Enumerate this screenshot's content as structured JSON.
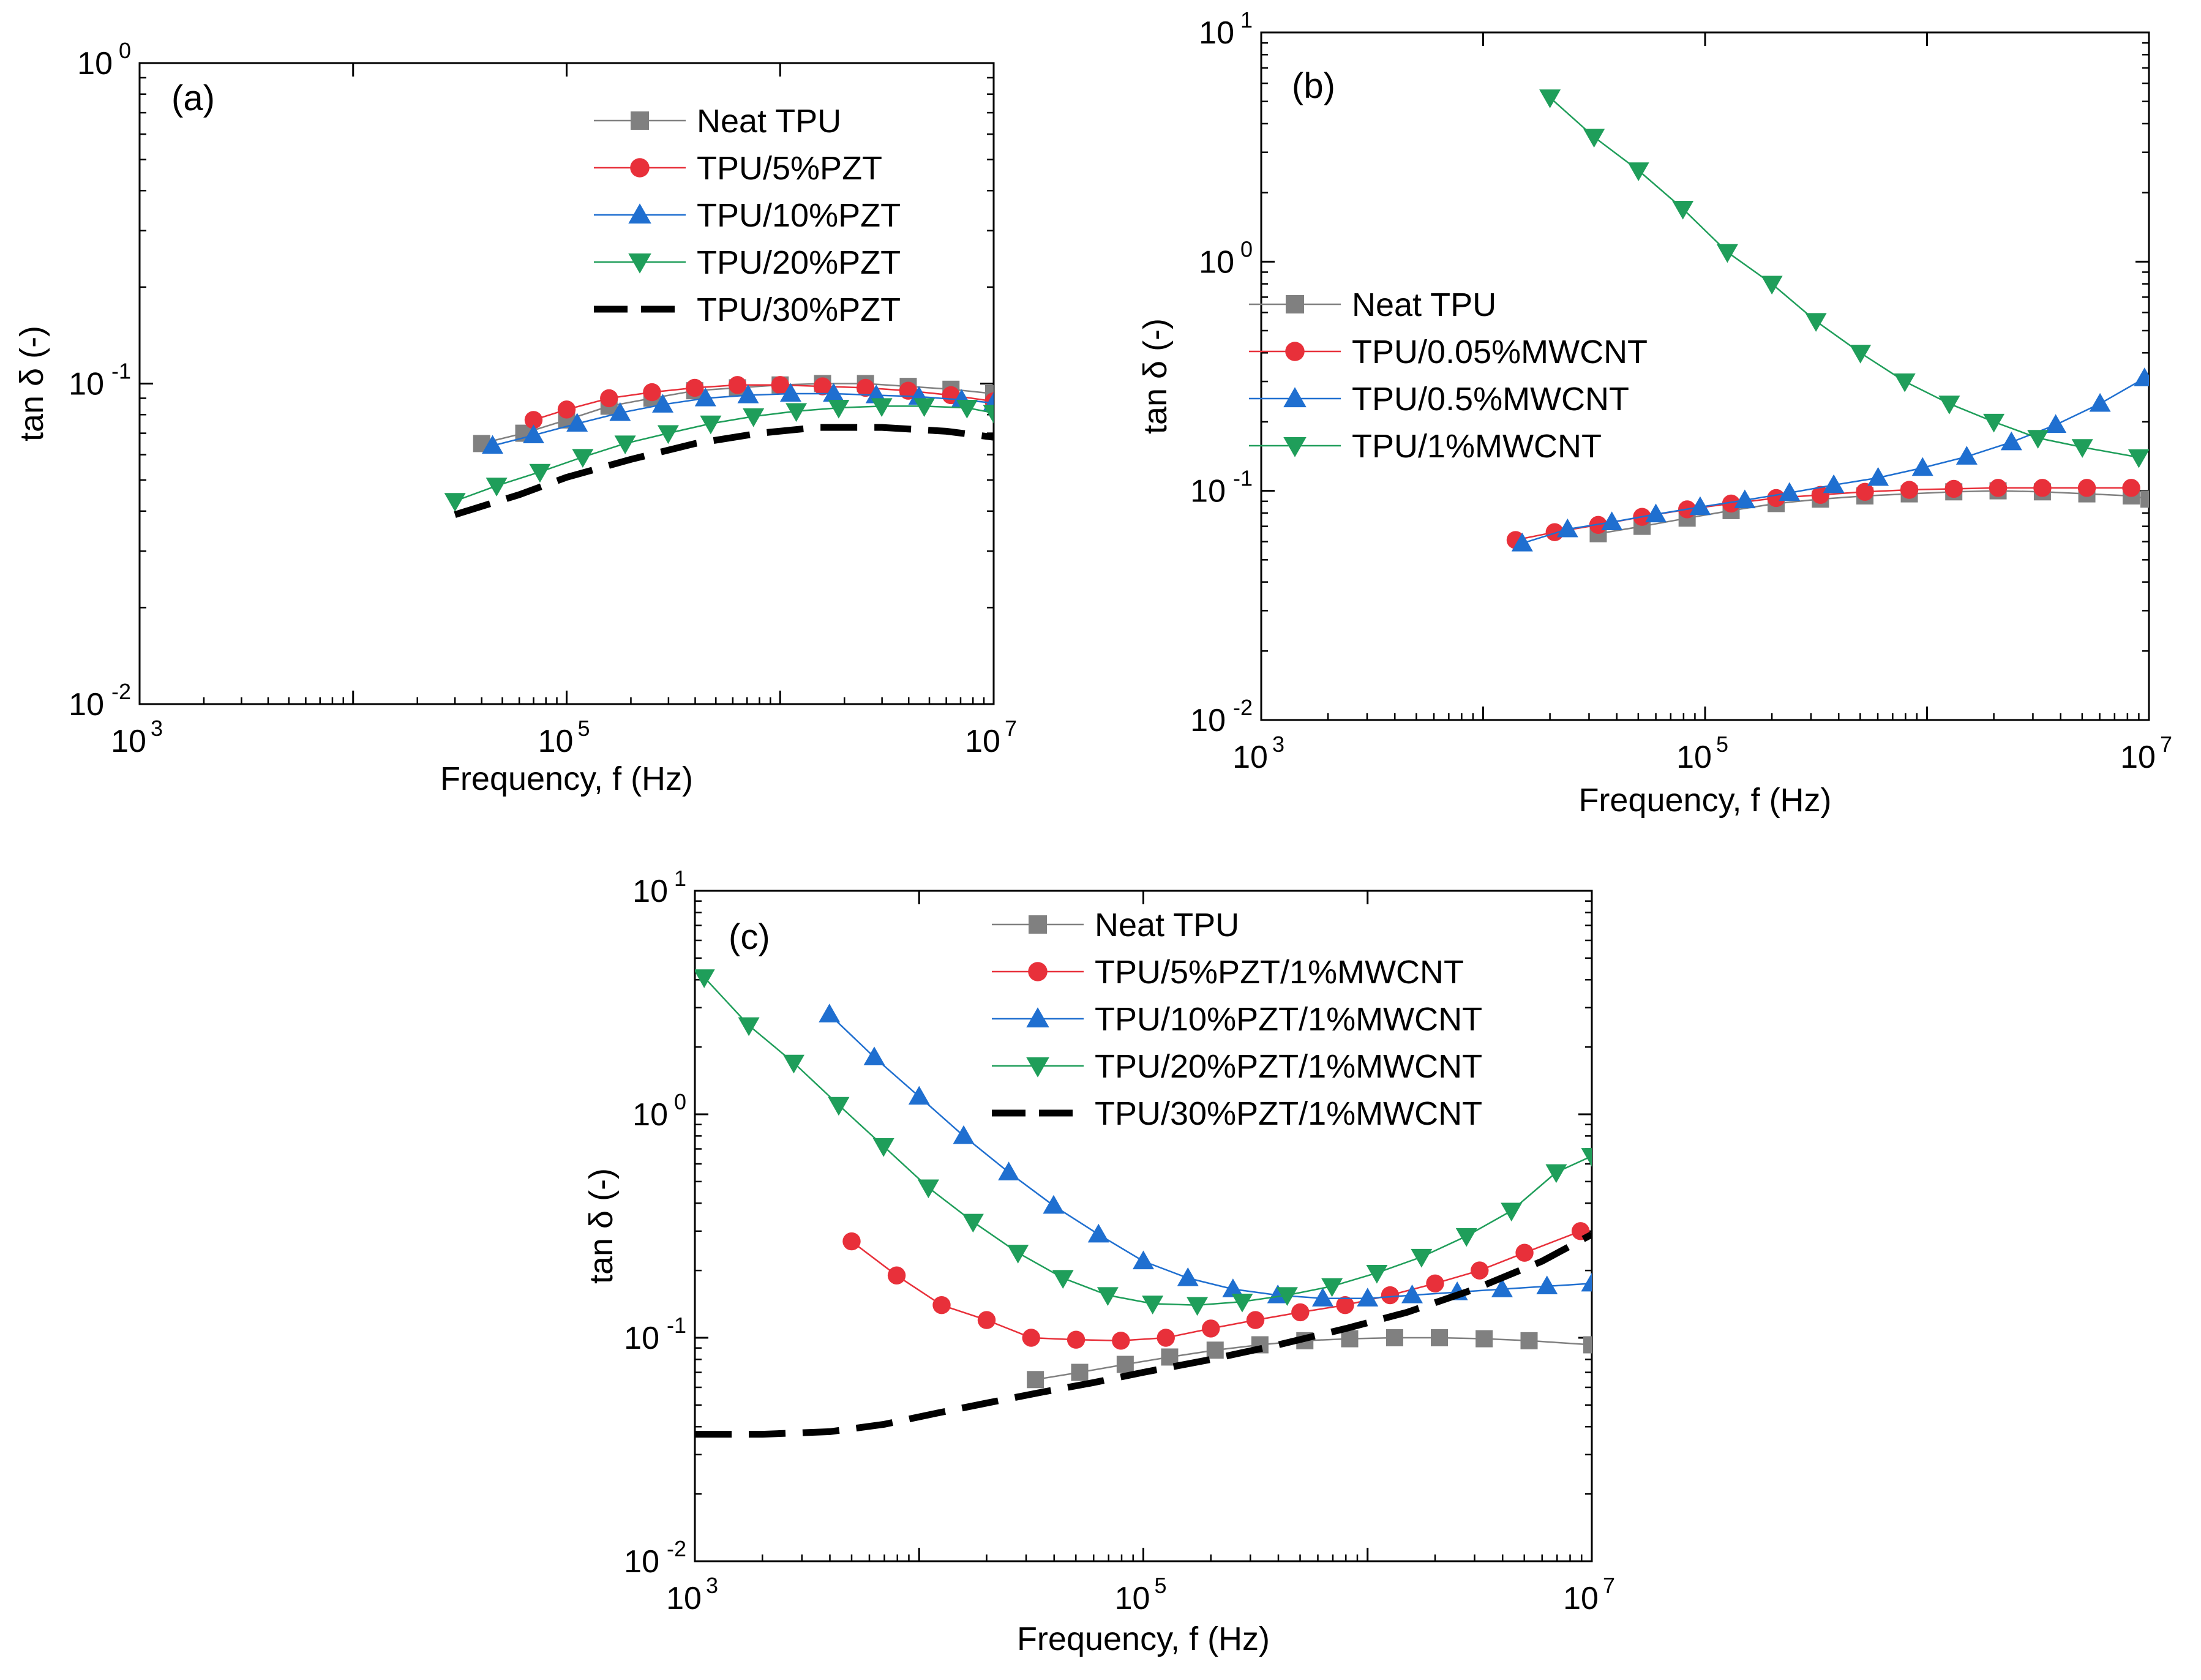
{
  "chart_data": [
    {
      "type": "line",
      "panel_label": "(a)",
      "xlabel": "Frequency, f (Hz)",
      "ylabel": "tan δ (-)",
      "xscale": "log",
      "yscale": "log",
      "xlim": [
        1000,
        10000000
      ],
      "ylim": [
        0.01,
        1
      ],
      "xticks": [
        {
          "base": "10",
          "exp": "3"
        },
        {
          "base": "10",
          "exp": "5"
        },
        {
          "base": "10",
          "exp": "7"
        }
      ],
      "yticks": [
        {
          "base": "10",
          "exp": "-2"
        },
        {
          "base": "10",
          "exp": "-1"
        },
        {
          "base": "10",
          "exp": "0"
        }
      ],
      "legend_position": "top-right",
      "series": [
        {
          "name": "Neat TPU",
          "color": "#808080",
          "marker": "square",
          "x": [
            40000,
            63000,
            100000,
            158000,
            251000,
            398000,
            631000,
            1000000,
            1580000,
            2510000,
            3980000,
            6310000,
            10000000
          ],
          "y": [
            0.065,
            0.07,
            0.077,
            0.085,
            0.09,
            0.095,
            0.097,
            0.099,
            0.1,
            0.1,
            0.098,
            0.096,
            0.093
          ]
        },
        {
          "name": "TPU/5%PZT",
          "color": "#e8303a",
          "marker": "circle",
          "x": [
            70000,
            100000,
            158000,
            251000,
            398000,
            631000,
            1000000,
            1580000,
            2510000,
            3980000,
            6310000,
            10000000
          ],
          "y": [
            0.077,
            0.083,
            0.09,
            0.094,
            0.097,
            0.099,
            0.099,
            0.098,
            0.097,
            0.095,
            0.092,
            0.088
          ]
        },
        {
          "name": "TPU/10%PZT",
          "color": "#1f6fd0",
          "marker": "triangle-up",
          "x": [
            45000,
            70000,
            112000,
            178000,
            282000,
            447000,
            708000,
            1120000,
            1780000,
            2820000,
            4470000,
            7080000,
            10000000
          ],
          "y": [
            0.064,
            0.069,
            0.075,
            0.081,
            0.086,
            0.09,
            0.092,
            0.093,
            0.093,
            0.092,
            0.091,
            0.089,
            0.087
          ]
        },
        {
          "name": "TPU/20%PZT",
          "color": "#1f9e5a",
          "marker": "triangle-down",
          "x": [
            30000,
            47000,
            75000,
            119000,
            188000,
            299000,
            473000,
            750000,
            1190000,
            1880000,
            2990000,
            4730000,
            7500000,
            10000000
          ],
          "y": [
            0.043,
            0.048,
            0.053,
            0.059,
            0.065,
            0.07,
            0.075,
            0.079,
            0.082,
            0.084,
            0.085,
            0.085,
            0.084,
            0.081
          ]
        },
        {
          "name": "TPU/30%PZT",
          "color": "#000000",
          "marker": "dash",
          "x": [
            30000,
            60000,
            100000,
            200000,
            400000,
            800000,
            1500000,
            3000000,
            6000000,
            10000000
          ],
          "y": [
            0.039,
            0.045,
            0.051,
            0.058,
            0.065,
            0.07,
            0.073,
            0.073,
            0.071,
            0.068
          ]
        }
      ]
    },
    {
      "type": "line",
      "panel_label": "(b)",
      "xlabel": "Frequency, f (Hz)",
      "ylabel": "tan δ (-)",
      "xscale": "log",
      "yscale": "log",
      "xlim": [
        1000,
        10000000
      ],
      "ylim": [
        0.01,
        10
      ],
      "xticks": [
        {
          "base": "10",
          "exp": "3"
        },
        {
          "base": "10",
          "exp": "5"
        },
        {
          "base": "10",
          "exp": "7"
        }
      ],
      "yticks": [
        {
          "base": "10",
          "exp": "-2"
        },
        {
          "base": "10",
          "exp": "-1"
        },
        {
          "base": "10",
          "exp": "0"
        },
        {
          "base": "10",
          "exp": "1"
        }
      ],
      "legend_position": "center-left",
      "series": [
        {
          "name": "Neat TPU",
          "color": "#808080",
          "marker": "square",
          "x": [
            33000,
            52000,
            83000,
            131000,
            209000,
            331000,
            525000,
            832000,
            1320000,
            2090000,
            3310000,
            5250000,
            8320000,
            10000000
          ],
          "y": [
            0.065,
            0.07,
            0.076,
            0.082,
            0.088,
            0.092,
            0.095,
            0.097,
            0.099,
            0.1,
            0.099,
            0.097,
            0.095,
            0.092
          ]
        },
        {
          "name": "TPU/0.05%MWCNT",
          "color": "#e8303a",
          "marker": "circle",
          "x": [
            14000,
            21000,
            33000,
            52000,
            83000,
            131000,
            209000,
            331000,
            525000,
            832000,
            1320000,
            2090000,
            3310000,
            5250000,
            8320000
          ],
          "y": [
            0.061,
            0.066,
            0.071,
            0.077,
            0.083,
            0.088,
            0.093,
            0.096,
            0.099,
            0.101,
            0.102,
            0.103,
            0.103,
            0.103,
            0.103
          ]
        },
        {
          "name": "TPU/0.5%MWCNT",
          "color": "#1f6fd0",
          "marker": "triangle-up",
          "x": [
            15000,
            24000,
            38000,
            60000,
            95000,
            151000,
            240000,
            380000,
            602000,
            955000,
            1510000,
            2400000,
            3800000,
            6020000,
            9550000
          ],
          "y": [
            0.059,
            0.068,
            0.073,
            0.079,
            0.085,
            0.091,
            0.098,
            0.106,
            0.114,
            0.126,
            0.141,
            0.163,
            0.194,
            0.24,
            0.31
          ]
        },
        {
          "name": "TPU/1%MWCNT",
          "color": "#1f9e5a",
          "marker": "triangle-down",
          "x": [
            20000,
            31600,
            50100,
            79400,
            126000,
            200000,
            316000,
            501000,
            794000,
            1260000,
            2000000,
            3160000,
            5010000,
            9000000
          ],
          "y": [
            5.2,
            3.5,
            2.5,
            1.7,
            1.1,
            0.8,
            0.55,
            0.4,
            0.3,
            0.24,
            0.2,
            0.17,
            0.155,
            0.14
          ]
        }
      ]
    },
    {
      "type": "line",
      "panel_label": "(c)",
      "xlabel": "Frequency, f (Hz)",
      "ylabel": "tan δ (-)",
      "xscale": "log",
      "yscale": "log",
      "xlim": [
        1000,
        10000000
      ],
      "ylim": [
        0.01,
        10
      ],
      "xticks": [
        {
          "base": "10",
          "exp": "3"
        },
        {
          "base": "10",
          "exp": "5"
        },
        {
          "base": "10",
          "exp": "7"
        }
      ],
      "yticks": [
        {
          "base": "10",
          "exp": "-2"
        },
        {
          "base": "10",
          "exp": "-1"
        },
        {
          "base": "10",
          "exp": "0"
        },
        {
          "base": "10",
          "exp": "1"
        }
      ],
      "legend_position": "top-right",
      "series": [
        {
          "name": "Neat TPU",
          "color": "#808080",
          "marker": "square",
          "x": [
            33000,
            52000,
            83000,
            131000,
            209000,
            331000,
            525000,
            832000,
            1320000,
            2090000,
            3310000,
            5250000,
            10000000
          ],
          "y": [
            0.065,
            0.07,
            0.076,
            0.082,
            0.088,
            0.093,
            0.097,
            0.099,
            0.1,
            0.1,
            0.099,
            0.097,
            0.093
          ]
        },
        {
          "name": "TPU/5%PZT/1%MWCNT",
          "color": "#e8303a",
          "marker": "circle",
          "x": [
            5000,
            7940,
            12600,
            20000,
            31600,
            50100,
            79400,
            126000,
            200000,
            316000,
            501000,
            794000,
            1260000,
            2000000,
            3160000,
            5010000,
            8910000
          ],
          "y": [
            0.27,
            0.19,
            0.14,
            0.12,
            0.1,
            0.098,
            0.097,
            0.1,
            0.11,
            0.12,
            0.13,
            0.14,
            0.155,
            0.175,
            0.2,
            0.24,
            0.3
          ]
        },
        {
          "name": "TPU/10%PZT/1%MWCNT",
          "color": "#1f6fd0",
          "marker": "triangle-up",
          "x": [
            3980,
            6310,
            10000,
            15800,
            25100,
            39800,
            63100,
            100000,
            158000,
            251000,
            398000,
            631000,
            1000000,
            1580000,
            2510000,
            3980000,
            6310000,
            10000000
          ],
          "y": [
            2.8,
            1.8,
            1.2,
            0.8,
            0.55,
            0.39,
            0.29,
            0.22,
            0.185,
            0.165,
            0.155,
            0.15,
            0.15,
            0.155,
            0.16,
            0.165,
            0.17,
            0.175
          ]
        },
        {
          "name": "TPU/20%PZT/1%MWCNT",
          "color": "#1f9e5a",
          "marker": "triangle-down",
          "x": [
            1100,
            1740,
            2760,
            4380,
            6940,
            11000,
            17400,
            27600,
            43800,
            69400,
            110000,
            174000,
            276000,
            438000,
            694000,
            1100000,
            1740000,
            2760000,
            4380000,
            6940000,
            10000000
          ],
          "y": [
            4.1,
            2.5,
            1.7,
            1.1,
            0.72,
            0.47,
            0.33,
            0.24,
            0.185,
            0.155,
            0.142,
            0.14,
            0.145,
            0.155,
            0.17,
            0.195,
            0.23,
            0.285,
            0.37,
            0.55,
            0.65
          ]
        },
        {
          "name": "TPU/30%PZT/1%MWCNT",
          "color": "#000000",
          "marker": "dash",
          "x": [
            1000,
            2000,
            4000,
            7000,
            12000,
            20000,
            35000,
            60000,
            100000,
            200000,
            400000,
            800000,
            1500000,
            3000000,
            6000000,
            10000000
          ],
          "y": [
            0.037,
            0.037,
            0.038,
            0.041,
            0.046,
            0.051,
            0.057,
            0.063,
            0.07,
            0.08,
            0.093,
            0.11,
            0.13,
            0.165,
            0.22,
            0.29
          ]
        }
      ]
    }
  ]
}
